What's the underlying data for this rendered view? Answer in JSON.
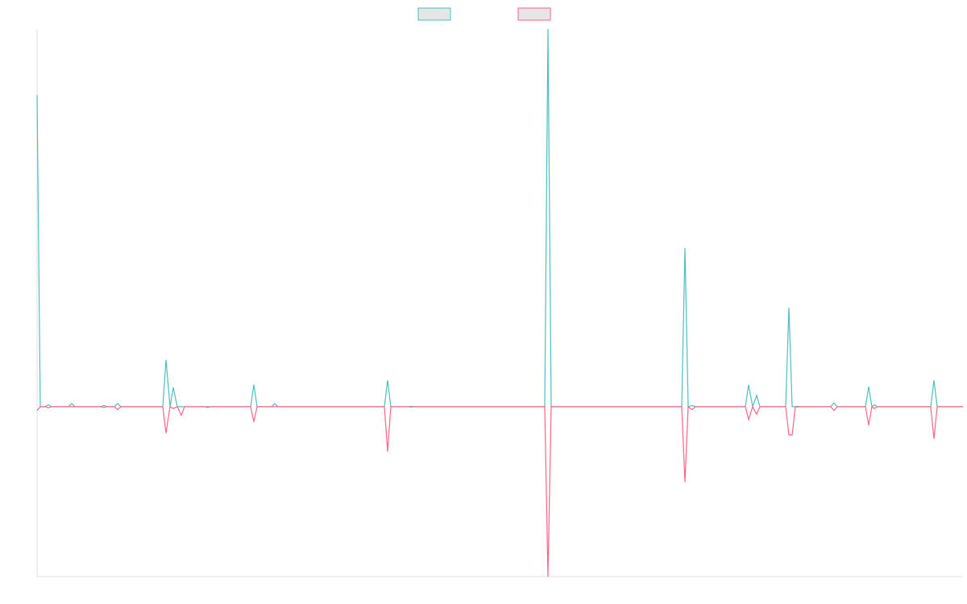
{
  "chart_data": {
    "type": "line",
    "x": [
      0,
      4,
      10,
      14,
      18,
      39,
      43,
      47,
      79,
      83,
      87,
      96,
      100,
      104,
      156,
      160,
      165,
      169,
      174,
      179,
      183,
      208,
      212,
      216,
      265,
      269,
      273,
      291,
      295,
      299,
      431,
      435,
      439,
      460,
      464,
      468,
      630,
      634,
      638,
      800,
      804,
      808,
      813,
      817,
      879,
      883,
      888,
      893,
      897,
      929,
      933,
      937,
      941,
      943,
      947,
      985,
      989,
      993,
      1028,
      1032,
      1036,
      1039,
      1043,
      1109,
      1113,
      1117,
      1149
    ],
    "xlim": [
      0,
      1149
    ],
    "ylim": [
      -45,
      100
    ],
    "legend": "top",
    "grid": false,
    "series": [
      {
        "color": "#4bc0c0",
        "values": [
          82.5,
          0,
          0,
          0.5,
          0,
          0,
          0.8,
          0,
          0,
          0.3,
          0,
          0,
          0.8,
          0,
          0,
          12.4,
          0,
          5.1,
          0,
          0,
          0,
          0,
          0,
          0,
          0,
          5.8,
          0,
          0,
          0.8,
          0,
          0,
          7,
          0,
          0,
          0.1,
          0,
          0,
          100,
          0,
          0,
          42,
          0,
          0.3,
          0,
          0,
          5.8,
          0,
          3,
          0,
          0,
          26.2,
          0,
          0,
          0.1,
          0,
          0,
          1,
          0,
          0,
          5.3,
          0,
          0.5,
          0,
          0,
          7,
          0,
          0
        ]
      },
      {
        "color": "#ff6384",
        "values": [
          -1,
          0,
          0,
          -0.3,
          0,
          0,
          0,
          0,
          0,
          -0.2,
          0,
          0,
          -0.8,
          0,
          0,
          -7,
          0,
          -0.5,
          0,
          -2.3,
          0,
          0,
          -0.2,
          0,
          0,
          -4,
          0,
          0,
          0,
          0,
          0,
          -11.9,
          0,
          0,
          -0.1,
          0,
          0,
          -45,
          0,
          0,
          -20,
          0,
          -0.8,
          0,
          0,
          -3.4,
          0,
          -2,
          0,
          0,
          -7.5,
          -7.5,
          0,
          -0.1,
          0,
          0,
          -1,
          0,
          0,
          -4.9,
          0,
          -0.5,
          0,
          0,
          -8.5,
          0,
          0
        ]
      }
    ]
  }
}
